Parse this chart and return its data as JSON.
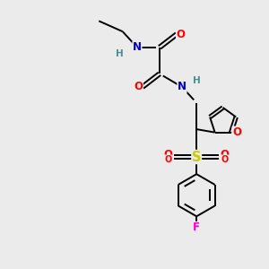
{
  "background_color": "#ebebeb",
  "atom_colors": {
    "C": "#000000",
    "N": "#0000cc",
    "O": "#ff0000",
    "S": "#cccc00",
    "F": "#ff00cc",
    "H": "#4a9090"
  },
  "bond_color": "#000000",
  "bond_width": 1.4,
  "dbl_sep": 0.07,
  "font_size": 8.5,
  "fig_width": 3.0,
  "fig_height": 3.0,
  "dpi": 100,
  "xlim": [
    0,
    10
  ],
  "ylim": [
    0,
    10
  ]
}
